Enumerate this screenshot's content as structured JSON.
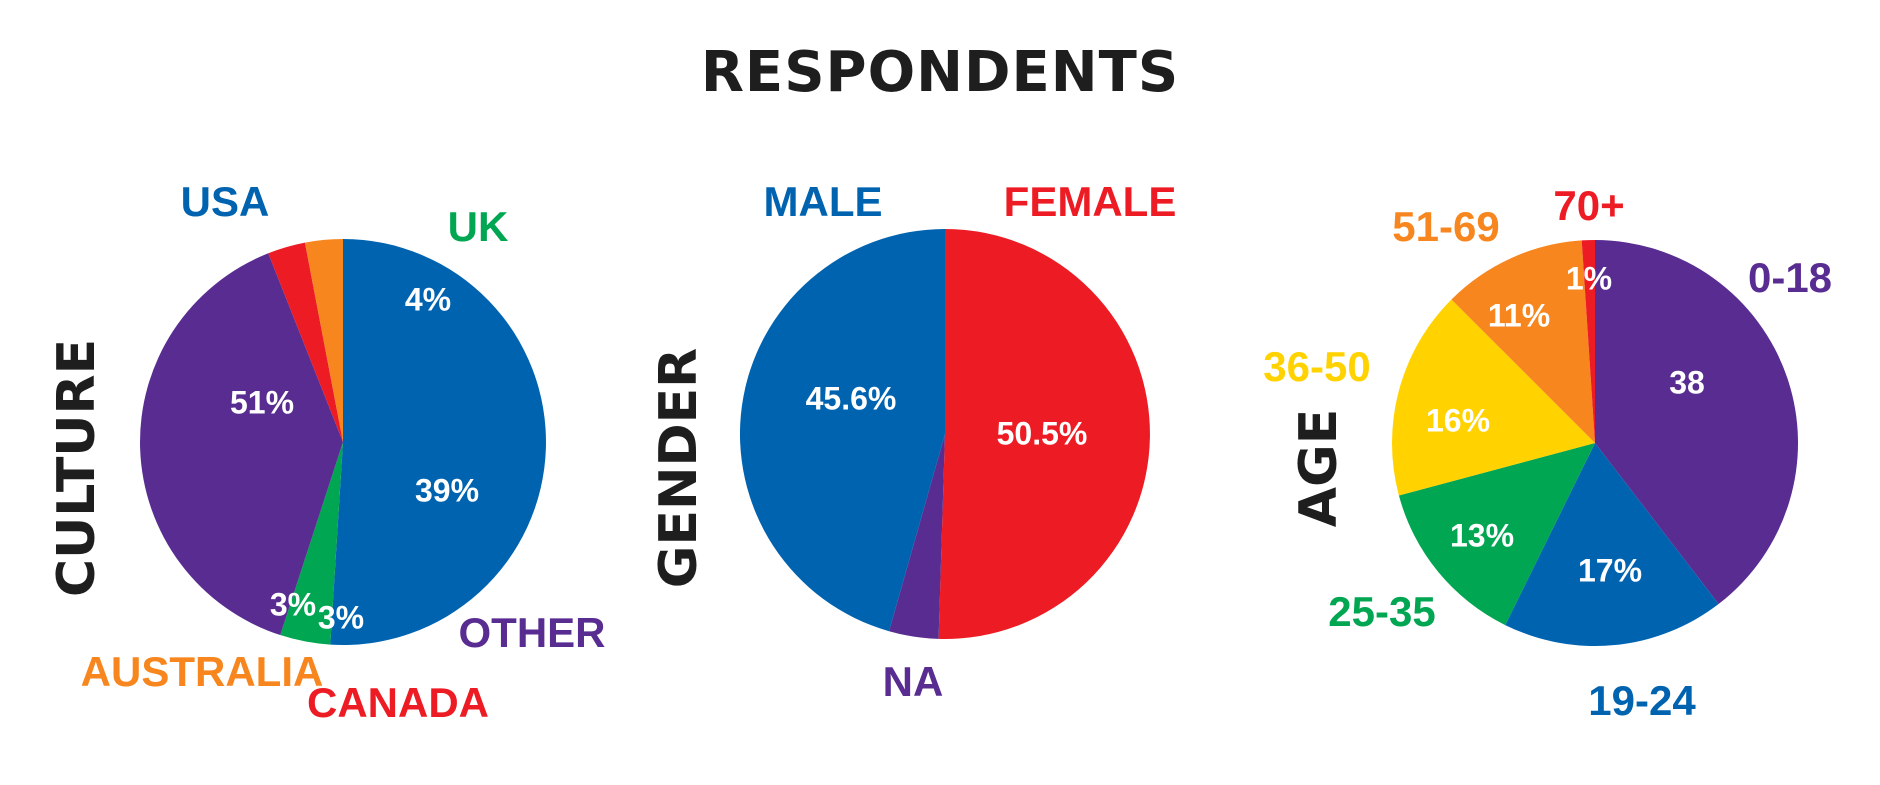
{
  "title": "RESPONDENTS",
  "chart_data": [
    {
      "type": "pie",
      "title": "CULTURE",
      "slices": [
        {
          "label": "USA",
          "value": 51,
          "display": "51%",
          "color": "#0063B0"
        },
        {
          "label": "UK",
          "value": 4,
          "display": "4%",
          "color": "#00A651"
        },
        {
          "label": "OTHER",
          "value": 39,
          "display": "39%",
          "color": "#582C91"
        },
        {
          "label": "CANADA",
          "value": 3,
          "display": "3%",
          "color": "#ED1C24"
        },
        {
          "label": "AUSTRALIA",
          "value": 3,
          "display": "3%",
          "color": "#F7861F"
        }
      ]
    },
    {
      "type": "pie",
      "title": "GENDER",
      "slices": [
        {
          "label": "FEMALE",
          "value": 50.5,
          "display": "50.5%",
          "color": "#ED1C24"
        },
        {
          "label": "NA",
          "value": 3.9,
          "display": "",
          "color": "#582C91"
        },
        {
          "label": "MALE",
          "value": 45.6,
          "display": "45.6%",
          "color": "#0063B0"
        }
      ]
    },
    {
      "type": "pie",
      "title": "AGE",
      "slices": [
        {
          "label": "0-18",
          "value": 38,
          "display": "38",
          "color": "#582C91"
        },
        {
          "label": "19-24",
          "value": 17,
          "display": "17%",
          "color": "#0063B0"
        },
        {
          "label": "25-35",
          "value": 13,
          "display": "13%",
          "color": "#00A651"
        },
        {
          "label": "36-50",
          "value": 16,
          "display": "16%",
          "color": "#FFD200"
        },
        {
          "label": "51-69",
          "value": 11,
          "display": "11%",
          "color": "#F7861F"
        },
        {
          "label": "70+",
          "value": 1,
          "display": "1%",
          "color": "#ED1C24"
        }
      ]
    }
  ]
}
